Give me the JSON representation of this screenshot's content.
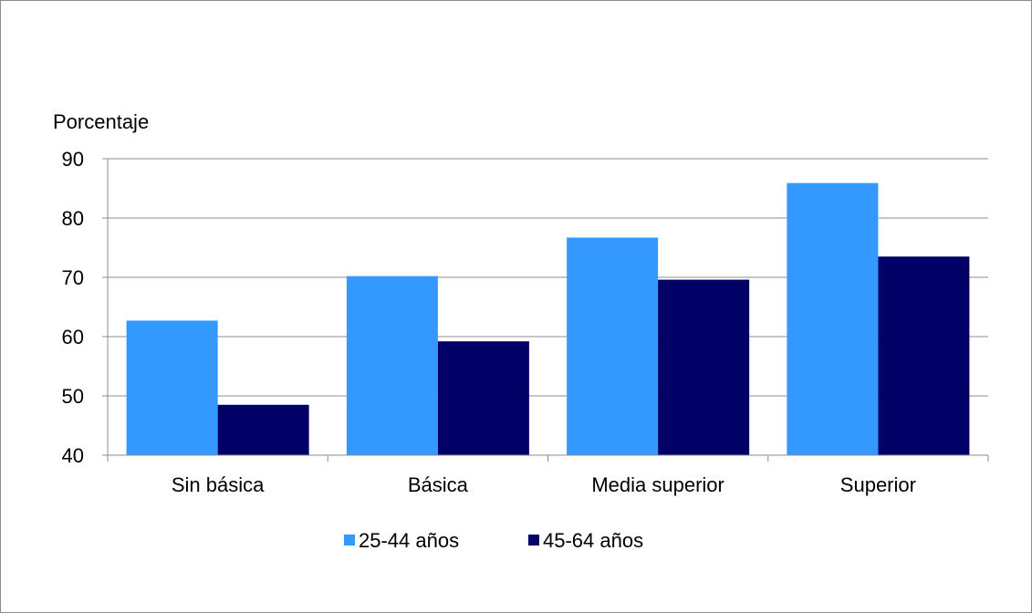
{
  "chart_data": {
    "type": "bar",
    "ylabel": "Porcentaje",
    "ylim": [
      40,
      90
    ],
    "yticks": [
      40,
      50,
      60,
      70,
      80,
      90
    ],
    "categories": [
      "Sin básica",
      "Básica",
      "Media superior",
      "Superior"
    ],
    "series": [
      {
        "name": "25-44 años",
        "color": "#3399ff",
        "values": [
          62.7,
          70.2,
          76.7,
          85.9
        ]
      },
      {
        "name": "45-64 años",
        "color": "#000066",
        "values": [
          48.5,
          59.2,
          69.6,
          73.5
        ]
      }
    ],
    "grid": true,
    "legend_position": "bottom"
  }
}
